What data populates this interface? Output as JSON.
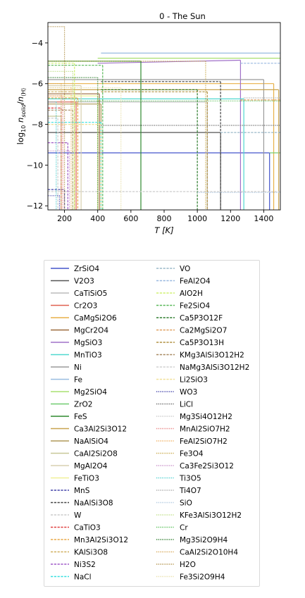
{
  "chart_data": {
    "type": "line",
    "title": "0 - The Sun",
    "xlabel": "T [K]",
    "ylabel": "log10 n_solid/n_⟨H⟩",
    "ylabel_parts": {
      "prefix": "log",
      "sub1": "10",
      "n": "n",
      "sub2": "solid",
      "slash": "/",
      "n2": "n",
      "sub3": "⟨H⟩"
    },
    "xlim": [
      100,
      1500
    ],
    "ylim": [
      -12.2,
      -3.0
    ],
    "xticks": [
      200,
      400,
      600,
      800,
      1000,
      1200,
      1400
    ],
    "yticks": [
      -12,
      -10,
      -8,
      -6,
      -4
    ],
    "xtick_labels": [
      "200",
      "400",
      "600",
      "800",
      "1000",
      "1200",
      "1400"
    ],
    "ytick_labels": [
      "−12",
      "−10",
      "−8",
      "−6",
      "−4"
    ],
    "grid": false,
    "legend_placement": "below",
    "series": [
      {
        "name": "ZrSiO4",
        "color": "#4455cc",
        "dash": "solid",
        "x": [
          100,
          1435
        ],
        "y": [
          -9.4,
          -9.4
        ]
      },
      {
        "name": "V2O3",
        "color": "#555555",
        "dash": "solid",
        "x": [
          100,
          1140
        ],
        "y": [
          -8.4,
          -8.4
        ]
      },
      {
        "name": "CaTiSiO5",
        "color": "#bbbbbb",
        "dash": "solid",
        "x": [
          100,
          1060
        ],
        "y": [
          -6.9,
          -6.9
        ]
      },
      {
        "name": "Cr2O3",
        "color": "#e06050",
        "dash": "solid",
        "x": [
          100,
          270
        ],
        "y": [
          -6.9,
          -6.9
        ]
      },
      {
        "name": "CaMgSi2O6",
        "color": "#e8b048",
        "dash": "solid",
        "x": [
          100,
          1460
        ],
        "y": [
          -6.0,
          -6.0
        ]
      },
      {
        "name": "MgCr2O4",
        "color": "#9c6a3c",
        "dash": "solid",
        "x": [
          100,
          410
        ],
        "y": [
          -6.5,
          -6.5
        ]
      },
      {
        "name": "MgSiO3",
        "color": "#a070c8",
        "dash": "solid",
        "x": [
          400,
          1260
        ],
        "y": [
          -5.0,
          -4.85
        ]
      },
      {
        "name": "MnTiO3",
        "color": "#50d8d0",
        "dash": "solid",
        "x": [
          100,
          1280
        ],
        "y": [
          -6.75,
          -6.75
        ]
      },
      {
        "name": "Ni",
        "color": "#9a9a9a",
        "dash": "solid",
        "x": [
          100,
          1400
        ],
        "y": [
          -5.8,
          -5.8
        ]
      },
      {
        "name": "Fe",
        "color": "#98bce0",
        "dash": "solid",
        "x": [
          420,
          1500
        ],
        "y": [
          -4.5,
          -4.5
        ]
      },
      {
        "name": "Mg2SiO4",
        "color": "#a8e070",
        "dash": "solid",
        "x": [
          400,
          1500
        ],
        "y": [
          -4.75,
          -4.75
        ]
      },
      {
        "name": "ZrO2",
        "color": "#70cc70",
        "dash": "solid",
        "x": [
          1435,
          1500
        ],
        "y": [
          -9.4,
          -9.4
        ]
      },
      {
        "name": "FeS",
        "color": "#2f8a2f",
        "dash": "solid",
        "x": [
          100,
          660
        ],
        "y": [
          -4.9,
          -4.9
        ]
      },
      {
        "name": "Ca3Al2Si3O12",
        "color": "#c8a450",
        "dash": "solid",
        "x": [
          100,
          1490
        ],
        "y": [
          -6.3,
          -6.3
        ]
      },
      {
        "name": "NaAlSiO4",
        "color": "#b09a58",
        "dash": "solid",
        "x": [
          100,
          420
        ],
        "y": [
          -7.0,
          -7.0
        ]
      },
      {
        "name": "CaAl2Si2O8",
        "color": "#c8c898",
        "dash": "solid",
        "x": [
          100,
          180
        ],
        "y": [
          -7.6,
          -7.6
        ]
      },
      {
        "name": "MgAl2O4",
        "color": "#d8d0b0",
        "dash": "solid",
        "x": [
          100,
          300
        ],
        "y": [
          -6.1,
          -6.1
        ]
      },
      {
        "name": "FeTiO3",
        "color": "#f0f098",
        "dash": "solid",
        "x": [
          100,
          400
        ],
        "y": [
          -6.6,
          -6.6
        ]
      },
      {
        "name": "MnS",
        "color": "#4444aa",
        "dash": "dashed",
        "x": [
          100,
          200
        ],
        "y": [
          -11.2,
          -11.2
        ]
      },
      {
        "name": "NaAlSi3O8",
        "color": "#444444",
        "dash": "dashed",
        "x": [
          420,
          1140
        ],
        "y": [
          -5.9,
          -5.9
        ]
      },
      {
        "name": "W",
        "color": "#cccccc",
        "dash": "dashed",
        "x": [
          100,
          1500
        ],
        "y": [
          -11.3,
          -11.3
        ]
      },
      {
        "name": "CaTiO3",
        "color": "#e04040",
        "dash": "dashed",
        "x": [
          100,
          180
        ],
        "y": [
          -7.2,
          -7.2
        ]
      },
      {
        "name": "Mn3Al2Si3O12",
        "color": "#e8a848",
        "dash": "dashed",
        "x": [
          100,
          280
        ],
        "y": [
          -6.7,
          -6.7
        ]
      },
      {
        "name": "KAlSi3O8",
        "color": "#d0b060",
        "dash": "dashed",
        "x": [
          100,
          260
        ],
        "y": [
          -6.4,
          -6.4
        ]
      },
      {
        "name": "Ni3S2",
        "color": "#a05ac8",
        "dash": "dashed",
        "x": [
          100,
          220
        ],
        "y": [
          -8.9,
          -8.9
        ]
      },
      {
        "name": "NaCl",
        "color": "#38e0e0",
        "dash": "dashed",
        "x": [
          100,
          420
        ],
        "y": [
          -7.9,
          -7.9
        ]
      },
      {
        "name": "VO",
        "color": "#9ab8c8",
        "dash": "dashed",
        "x": [
          1140,
          1500
        ],
        "y": [
          -8.4,
          -8.4
        ]
      },
      {
        "name": "FeAl2O4",
        "color": "#98b8e0",
        "dash": "dashed",
        "x": [
          1260,
          1500
        ],
        "y": [
          -5.0,
          -5.0
        ]
      },
      {
        "name": "AlO2H",
        "color": "#d0f070",
        "dash": "dashed",
        "x": [
          100,
          260
        ],
        "y": [
          -5.0,
          -5.0
        ]
      },
      {
        "name": "Fe2SiO4",
        "color": "#58b858",
        "dash": "dashed",
        "x": [
          100,
          430
        ],
        "y": [
          -5.1,
          -5.1
        ]
      },
      {
        "name": "Ca5P3O12F",
        "color": "#2e7d2e",
        "dash": "dashed",
        "x": [
          420,
          1000
        ],
        "y": [
          -6.3,
          -6.3
        ]
      },
      {
        "name": "Ca2MgSi2O7",
        "color": "#e0a060",
        "dash": "dashed",
        "x": [
          1260,
          1500
        ],
        "y": [
          -6.8,
          -6.8
        ]
      },
      {
        "name": "Ca5P3O13H",
        "color": "#b09040",
        "dash": "dashed",
        "x": [
          420,
          1060
        ],
        "y": [
          -6.4,
          -6.4
        ]
      },
      {
        "name": "KMg3AlSi3O12H2",
        "color": "#a88860",
        "dash": "dashed",
        "x": [
          100,
          250
        ],
        "y": [
          -7.3,
          -7.3
        ]
      },
      {
        "name": "NaMg3AlSi3O12H2",
        "color": "#d0d0d0",
        "dash": "dashed",
        "x": [
          100,
          160
        ],
        "y": [
          -7.7,
          -7.7
        ]
      },
      {
        "name": "Li2SiO3",
        "color": "#f0e098",
        "dash": "dashed",
        "x": [
          100,
          420
        ],
        "y": [
          -8.0,
          -8.0
        ]
      },
      {
        "name": "WO3",
        "color": "#4444aa",
        "dash": "dotted",
        "x": [
          100,
          170
        ],
        "y": [
          -11.5,
          -11.5
        ]
      },
      {
        "name": "LiCl",
        "color": "#666666",
        "dash": "dotted",
        "x": [
          420,
          1500
        ],
        "y": [
          -8.05,
          -8.05
        ]
      },
      {
        "name": "Mg3Si4O12H2",
        "color": "#c8c8c8",
        "dash": "dotted",
        "x": [
          100,
          180
        ],
        "y": [
          -6.2,
          -6.2
        ]
      },
      {
        "name": "MnAl2SiO7H2",
        "color": "#e88080",
        "dash": "dotted",
        "x": [
          100,
          190
        ],
        "y": [
          -6.6,
          -6.6
        ]
      },
      {
        "name": "FeAl2SiO7H2",
        "color": "#f0b060",
        "dash": "dotted",
        "x": [
          100,
          240
        ],
        "y": [
          -6.2,
          -6.2
        ]
      },
      {
        "name": "Fe3O4",
        "color": "#c8a848",
        "dash": "dotted",
        "x": [
          100,
          1050
        ],
        "y": [
          -4.9,
          -4.9
        ]
      },
      {
        "name": "Ca3Fe2Si3O12",
        "color": "#c890c8",
        "dash": "dotted",
        "x": [
          100,
          230
        ],
        "y": [
          -9.3,
          -9.3
        ]
      },
      {
        "name": "Ti3O5",
        "color": "#50d0d0",
        "dash": "dotted",
        "x": [
          100,
          150
        ],
        "y": [
          -6.9,
          -6.9
        ]
      },
      {
        "name": "Ti4O7",
        "color": "#a8a8a8",
        "dash": "dotted",
        "x": [
          1280,
          1500
        ],
        "y": [
          -6.7,
          -6.7
        ]
      },
      {
        "name": "SiO",
        "color": "#b0c8e0",
        "dash": "dotted",
        "x": [
          1000,
          1500
        ],
        "y": [
          -11.35,
          -11.35
        ]
      },
      {
        "name": "KFe3AlSi3O12H2",
        "color": "#c0e088",
        "dash": "dotted",
        "x": [
          100,
          250
        ],
        "y": [
          -5.4,
          -5.4
        ]
      },
      {
        "name": "Cr",
        "color": "#58c058",
        "dash": "dotted",
        "x": [
          270,
          1500
        ],
        "y": [
          -6.85,
          -6.85
        ]
      },
      {
        "name": "Mg3Si2O9H4",
        "color": "#2e7d2e",
        "dash": "dotted",
        "x": [
          100,
          400
        ],
        "y": [
          -5.7,
          -5.7
        ]
      },
      {
        "name": "CaAl2Si2O10H4",
        "color": "#d8a858",
        "dash": "dotted",
        "x": [
          100,
          180
        ],
        "y": [
          -6.0,
          -6.0
        ]
      },
      {
        "name": "H2O",
        "color": "#b09048",
        "dash": "dotted",
        "x": [
          100,
          200
        ],
        "y": [
          -3.2,
          -3.2
        ]
      },
      {
        "name": "Fe3Si2O9H4",
        "color": "#e8e0a8",
        "dash": "dotted",
        "x": [
          100,
          540
        ],
        "y": [
          -6.2,
          -6.2
        ]
      }
    ]
  }
}
